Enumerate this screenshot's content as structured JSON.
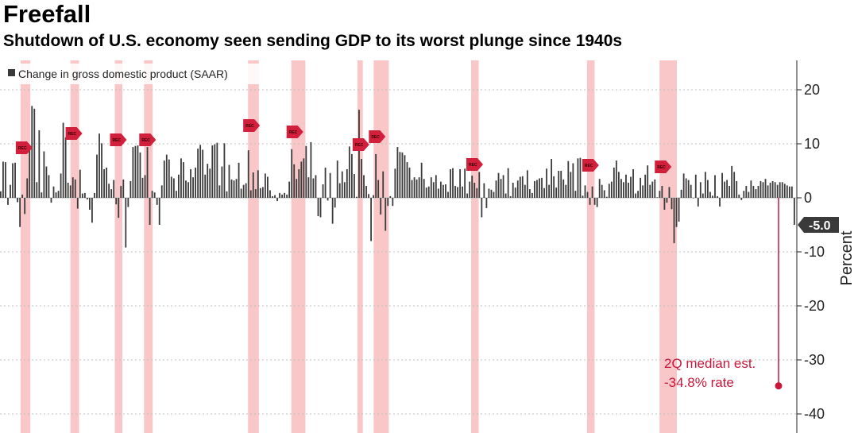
{
  "header": {
    "title": "Freefall",
    "subtitle": "Shutdown of U.S. economy seen sending GDP to its worst plunge since 1940s"
  },
  "chart_data": {
    "type": "bar",
    "legend": "Change in gross domestic product (SAAR)",
    "ylabel": "Percent",
    "ylim": [
      -43,
      26
    ],
    "yticks": [
      20,
      10,
      0,
      -10,
      -20,
      -30,
      -40
    ],
    "grid": true,
    "legend_position": "top-left",
    "axis_side": "right",
    "x_range": [
      1947.0,
      2020.5
    ],
    "recessions": [
      [
        1948.9,
        1949.8
      ],
      [
        1953.5,
        1954.3
      ],
      [
        1957.6,
        1958.3
      ],
      [
        1960.3,
        1961.1
      ],
      [
        1969.9,
        1970.9
      ],
      [
        1973.9,
        1975.2
      ],
      [
        1980.0,
        1980.5
      ],
      [
        1981.5,
        1982.9
      ],
      [
        1990.5,
        1991.2
      ],
      [
        2001.2,
        2001.9
      ],
      [
        2007.9,
        2009.5
      ]
    ],
    "recession_label": "REC",
    "values": [
      1.2,
      6.7,
      6.6,
      -1.3,
      2.4,
      6.4,
      6.5,
      -0.8,
      -5.4,
      0.6,
      -3.0,
      3.6,
      9.8,
      17.0,
      16.5,
      2.9,
      12.5,
      1.0,
      8.6,
      5.8,
      4.2,
      -0.9,
      2.1,
      1.0,
      1.3,
      4.5,
      13.9,
      11.2,
      2.8,
      2.3,
      3.8,
      3.4,
      -2.0,
      5.2,
      0.8,
      0.9,
      -0.3,
      -2.2,
      -4.6,
      0.9,
      8.0,
      11.9,
      10.1,
      5.3,
      5.6,
      2.6,
      1.6,
      3.3,
      -1.2,
      -3.7,
      2.2,
      3.4,
      -9.2,
      -1.7,
      3.1,
      9.4,
      9.6,
      9.7,
      8.4,
      3.7,
      4.2,
      9.4,
      -5.0,
      1.3,
      1.0,
      -1.3,
      -5.0,
      2.3,
      6.9,
      8.0,
      7.1,
      3.9,
      3.6,
      1.3,
      4.3,
      7.3,
      6.6,
      3.2,
      2.9,
      5.3,
      3.8,
      5.6,
      9.1,
      9.8,
      8.9,
      4.3,
      6.3,
      5.4,
      9.7,
      9.9,
      10.2,
      2.3,
      5.8,
      10.1,
      1.2,
      6.1,
      3.4,
      3.2,
      3.5,
      6.5,
      1.7,
      2.4,
      2.7,
      8.8,
      1.4,
      4.7,
      1.6,
      5.1,
      1.8,
      2.0,
      4.5,
      3.9,
      1.4,
      0.3,
      0.5,
      -0.6,
      0.9,
      0.6,
      0.9,
      0.6,
      3.0,
      9.0,
      6.2,
      3.5,
      5.3,
      6.7,
      7.3,
      9.6,
      3.8,
      10.3,
      3.6,
      4.2,
      -3.4,
      -3.6,
      2.5,
      5.6,
      -0.5,
      4.6,
      -4.8,
      -1.8,
      6.9,
      2.7,
      4.9,
      2.9,
      5.3,
      9.5,
      8.1,
      4.4,
      0.2,
      16.3,
      7.2,
      4.2,
      2.2,
      0.7,
      -8.0,
      0.5,
      8.1,
      3.3,
      -3.1,
      4.9,
      -6.1,
      -1.5,
      0.3,
      -1.5,
      5.4,
      9.4,
      8.5,
      8.4,
      7.9,
      6.6,
      5.6,
      3.3,
      3.8,
      3.4,
      3.8,
      6.5,
      3.5,
      1.9,
      2.1,
      3.8,
      2.9,
      4.2,
      1.7,
      3.0,
      2.4,
      2.5,
      1.1,
      5.3,
      5.5,
      2.2,
      2.0,
      5.3,
      2.1,
      5.4,
      0.8,
      3.0,
      4.1,
      2.8,
      1.8,
      4.8,
      -3.6,
      2.7,
      -1.9,
      1.7,
      1.5,
      1.1,
      3.2,
      4.6,
      3.5,
      4.2,
      0.8,
      5.5,
      0.3,
      2.8,
      1.9,
      3.2,
      3.9,
      4.0,
      2.4,
      5.1,
      1.6,
      0.9,
      3.1,
      3.3,
      3.6,
      3.7,
      1.8,
      5.4,
      2.4,
      7.2,
      4.0,
      1.9,
      5.0,
      5.0,
      3.4,
      2.4,
      6.8,
      4.8,
      6.4,
      1.3,
      7.3,
      7.4,
      0.4,
      2.3,
      1.1,
      -1.3,
      2.1,
      -1.3,
      -1.7,
      3.5,
      2.4,
      1.4,
      0.2,
      2.6,
      3.0,
      5.6,
      6.9,
      4.8,
      3.5,
      2.9,
      4.3,
      2.8,
      3.9,
      5.3,
      0.8,
      1.3,
      3.7,
      2.3,
      4.3,
      6.0,
      2.4,
      3.0,
      3.4,
      0.1,
      1.3,
      2.2,
      -2.2,
      -0.9,
      2.0,
      -2.1,
      -8.4,
      -5.4,
      -4.4,
      1.5,
      4.5,
      3.6,
      3.3,
      2.4,
      0.0,
      4.3,
      -1.6,
      2.9,
      0.8,
      4.8,
      3.3,
      1.1,
      0.4,
      4.2,
      0.3,
      -1.6,
      4.6,
      3.0,
      3.3,
      2.2,
      5.9,
      4.8,
      3.1,
      0.6,
      -0.4,
      1.3,
      2.2,
      1.1,
      3.2,
      2.2,
      1.6,
      2.2,
      3.1,
      2.9,
      3.5,
      2.3,
      2.8,
      3.1,
      2.9,
      2.4,
      2.9,
      2.9,
      2.6,
      2.3,
      2.1,
      2.1,
      -5.0
    ],
    "current": {
      "label": "-5.0",
      "value": -5.0
    },
    "estimate": {
      "value": -34.8,
      "label_line1": "2Q median est.",
      "label_line2": "-34.8% rate"
    },
    "colors": {
      "bar": "#3a3a3a",
      "recession": "#f7b9b9",
      "marker": "#d21f3c",
      "estimate": "#c8173b",
      "current_box": "#3a3a3a",
      "grid": "#bfbfbf"
    }
  }
}
